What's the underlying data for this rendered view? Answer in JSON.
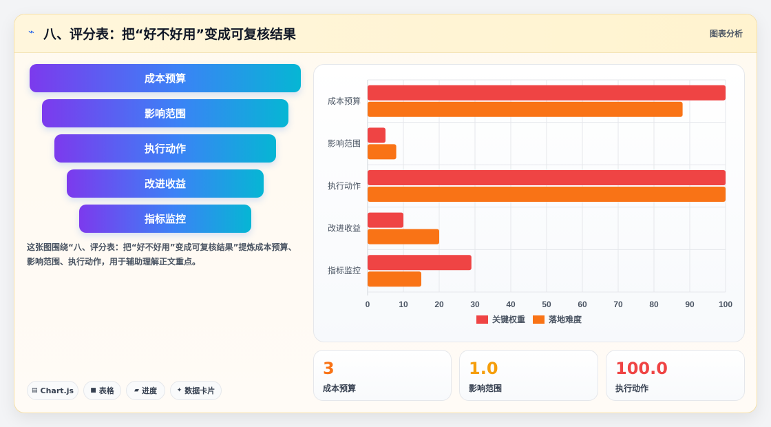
{
  "header": {
    "icon": "lightning-icon",
    "title": "八、评分表：把“好不好用”变成可复核结果",
    "tag": "图表分析"
  },
  "funnel": {
    "items": [
      "成本预算",
      "影响范围",
      "执行动作",
      "改进收益",
      "指标监控"
    ]
  },
  "description": "这张图围绕“八、评分表：把“好不好用”变成可复核结果”提炼成本预算、影响范围、执行动作，用于辅助理解正文重点。",
  "chips": [
    {
      "icon": "chart-icon",
      "label": "Chart.js"
    },
    {
      "icon": "table-icon",
      "label": "表格"
    },
    {
      "icon": "progress-icon",
      "label": "进度"
    },
    {
      "icon": "sparkle-icon",
      "label": "数据卡片"
    }
  ],
  "stats": [
    {
      "value": "3",
      "label": "成本预算",
      "color": "#f97316"
    },
    {
      "value": "1.0",
      "label": "影响范围",
      "color": "#f59e0b"
    },
    {
      "value": "100.0",
      "label": "执行动作",
      "color": "#ef4444"
    }
  ],
  "chart_data": {
    "type": "bar",
    "orientation": "horizontal",
    "categories": [
      "成本预算",
      "影响范围",
      "执行动作",
      "改进收益",
      "指标监控"
    ],
    "series": [
      {
        "name": "关键权重",
        "values": [
          100,
          5,
          100,
          10,
          29
        ],
        "color": "#ef4444"
      },
      {
        "name": "落地难度",
        "values": [
          88,
          8,
          100,
          20,
          15
        ],
        "color": "#f97316"
      }
    ],
    "xlim": [
      0,
      100
    ],
    "xticks": [
      0,
      10,
      20,
      30,
      40,
      50,
      60,
      70,
      80,
      90,
      100
    ],
    "grid": true,
    "legend": "bottom"
  }
}
